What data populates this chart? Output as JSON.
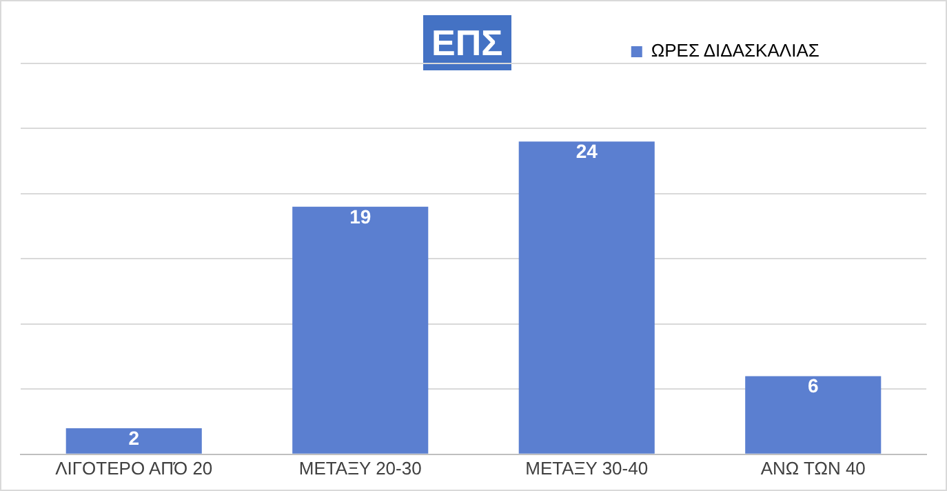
{
  "chart_data": {
    "type": "bar",
    "title": "ΕΠΣ",
    "categories": [
      "ΛΙΓΟΤΕΡΟ ΑΠΌ 20",
      "ΜΕΤΑΞΥ 20-30",
      "ΜΕΤΑΞΥ 30-40",
      "ΑΝΩ ΤΩΝ 40"
    ],
    "series": [
      {
        "name": "ΩΡΕΣ ΔΙΔΑΣΚΑΛΙΑΣ",
        "color": "#5b7fd0",
        "values": [
          2,
          19,
          24,
          6
        ]
      }
    ],
    "ylim": [
      0,
      30
    ],
    "yticks": [
      {
        "value": 0,
        "label": null
      },
      {
        "value": 5,
        "label": null
      },
      {
        "value": 10,
        "label": null
      },
      {
        "value": 15,
        "label": null
      },
      {
        "value": 20,
        "label": null
      },
      {
        "value": 25,
        "label": null
      },
      {
        "value": 30,
        "label": null
      }
    ],
    "tick_labels": "x",
    "grid": "y",
    "legend": "top",
    "data_labels": true
  }
}
